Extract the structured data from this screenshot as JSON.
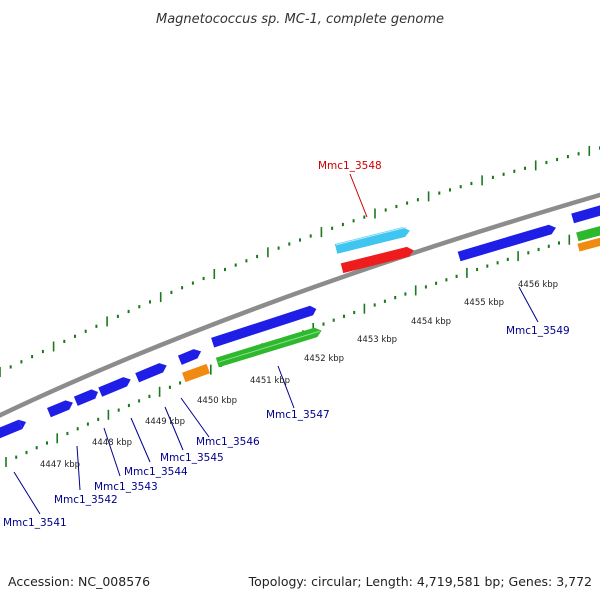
{
  "title": "Magnetococcus sp. MC-1, complete genome",
  "footer": {
    "accession": "Accession: NC_008576",
    "summary": "Topology: circular; Length: 4,719,581 bp; Genes: 3,772"
  },
  "colors": {
    "backbone": "#8c8c8c",
    "tick": "#1a7a1a",
    "forward_gene": "#1e1ee6",
    "reverse_gene_green": "#2eb82e",
    "orange_gene": "#f08a10",
    "cyan_gene": "#40c4f0",
    "red_gene": "#ee1c1c",
    "label_blue": "#00008b",
    "label_red": "#cc0000"
  },
  "scale": {
    "unit": "kbp",
    "tick_labels": [
      {
        "label": "4447 kbp",
        "kbp": 4447
      },
      {
        "label": "4448 kbp",
        "kbp": 4448
      },
      {
        "label": "4449 kbp",
        "kbp": 4449
      },
      {
        "label": "4450 kbp",
        "kbp": 4450
      },
      {
        "label": "4451 kbp",
        "kbp": 4451
      },
      {
        "label": "4452 kbp",
        "kbp": 4452
      },
      {
        "label": "4453 kbp",
        "kbp": 4453
      },
      {
        "label": "4454 kbp",
        "kbp": 4454
      },
      {
        "label": "4455 kbp",
        "kbp": 4455
      },
      {
        "label": "4456 kbp",
        "kbp": 4456
      }
    ]
  },
  "gene_labels": [
    {
      "name": "Mmc1_3541",
      "color": "label_blue"
    },
    {
      "name": "Mmc1_3542",
      "color": "label_blue"
    },
    {
      "name": "Mmc1_3543",
      "color": "label_blue"
    },
    {
      "name": "Mmc1_3544",
      "color": "label_blue"
    },
    {
      "name": "Mmc1_3545",
      "color": "label_blue"
    },
    {
      "name": "Mmc1_3546",
      "color": "label_blue"
    },
    {
      "name": "Mmc1_3547",
      "color": "label_blue"
    },
    {
      "name": "Mmc1_3548",
      "color": "label_red"
    },
    {
      "name": "Mmc1_3549",
      "color": "label_blue"
    }
  ]
}
